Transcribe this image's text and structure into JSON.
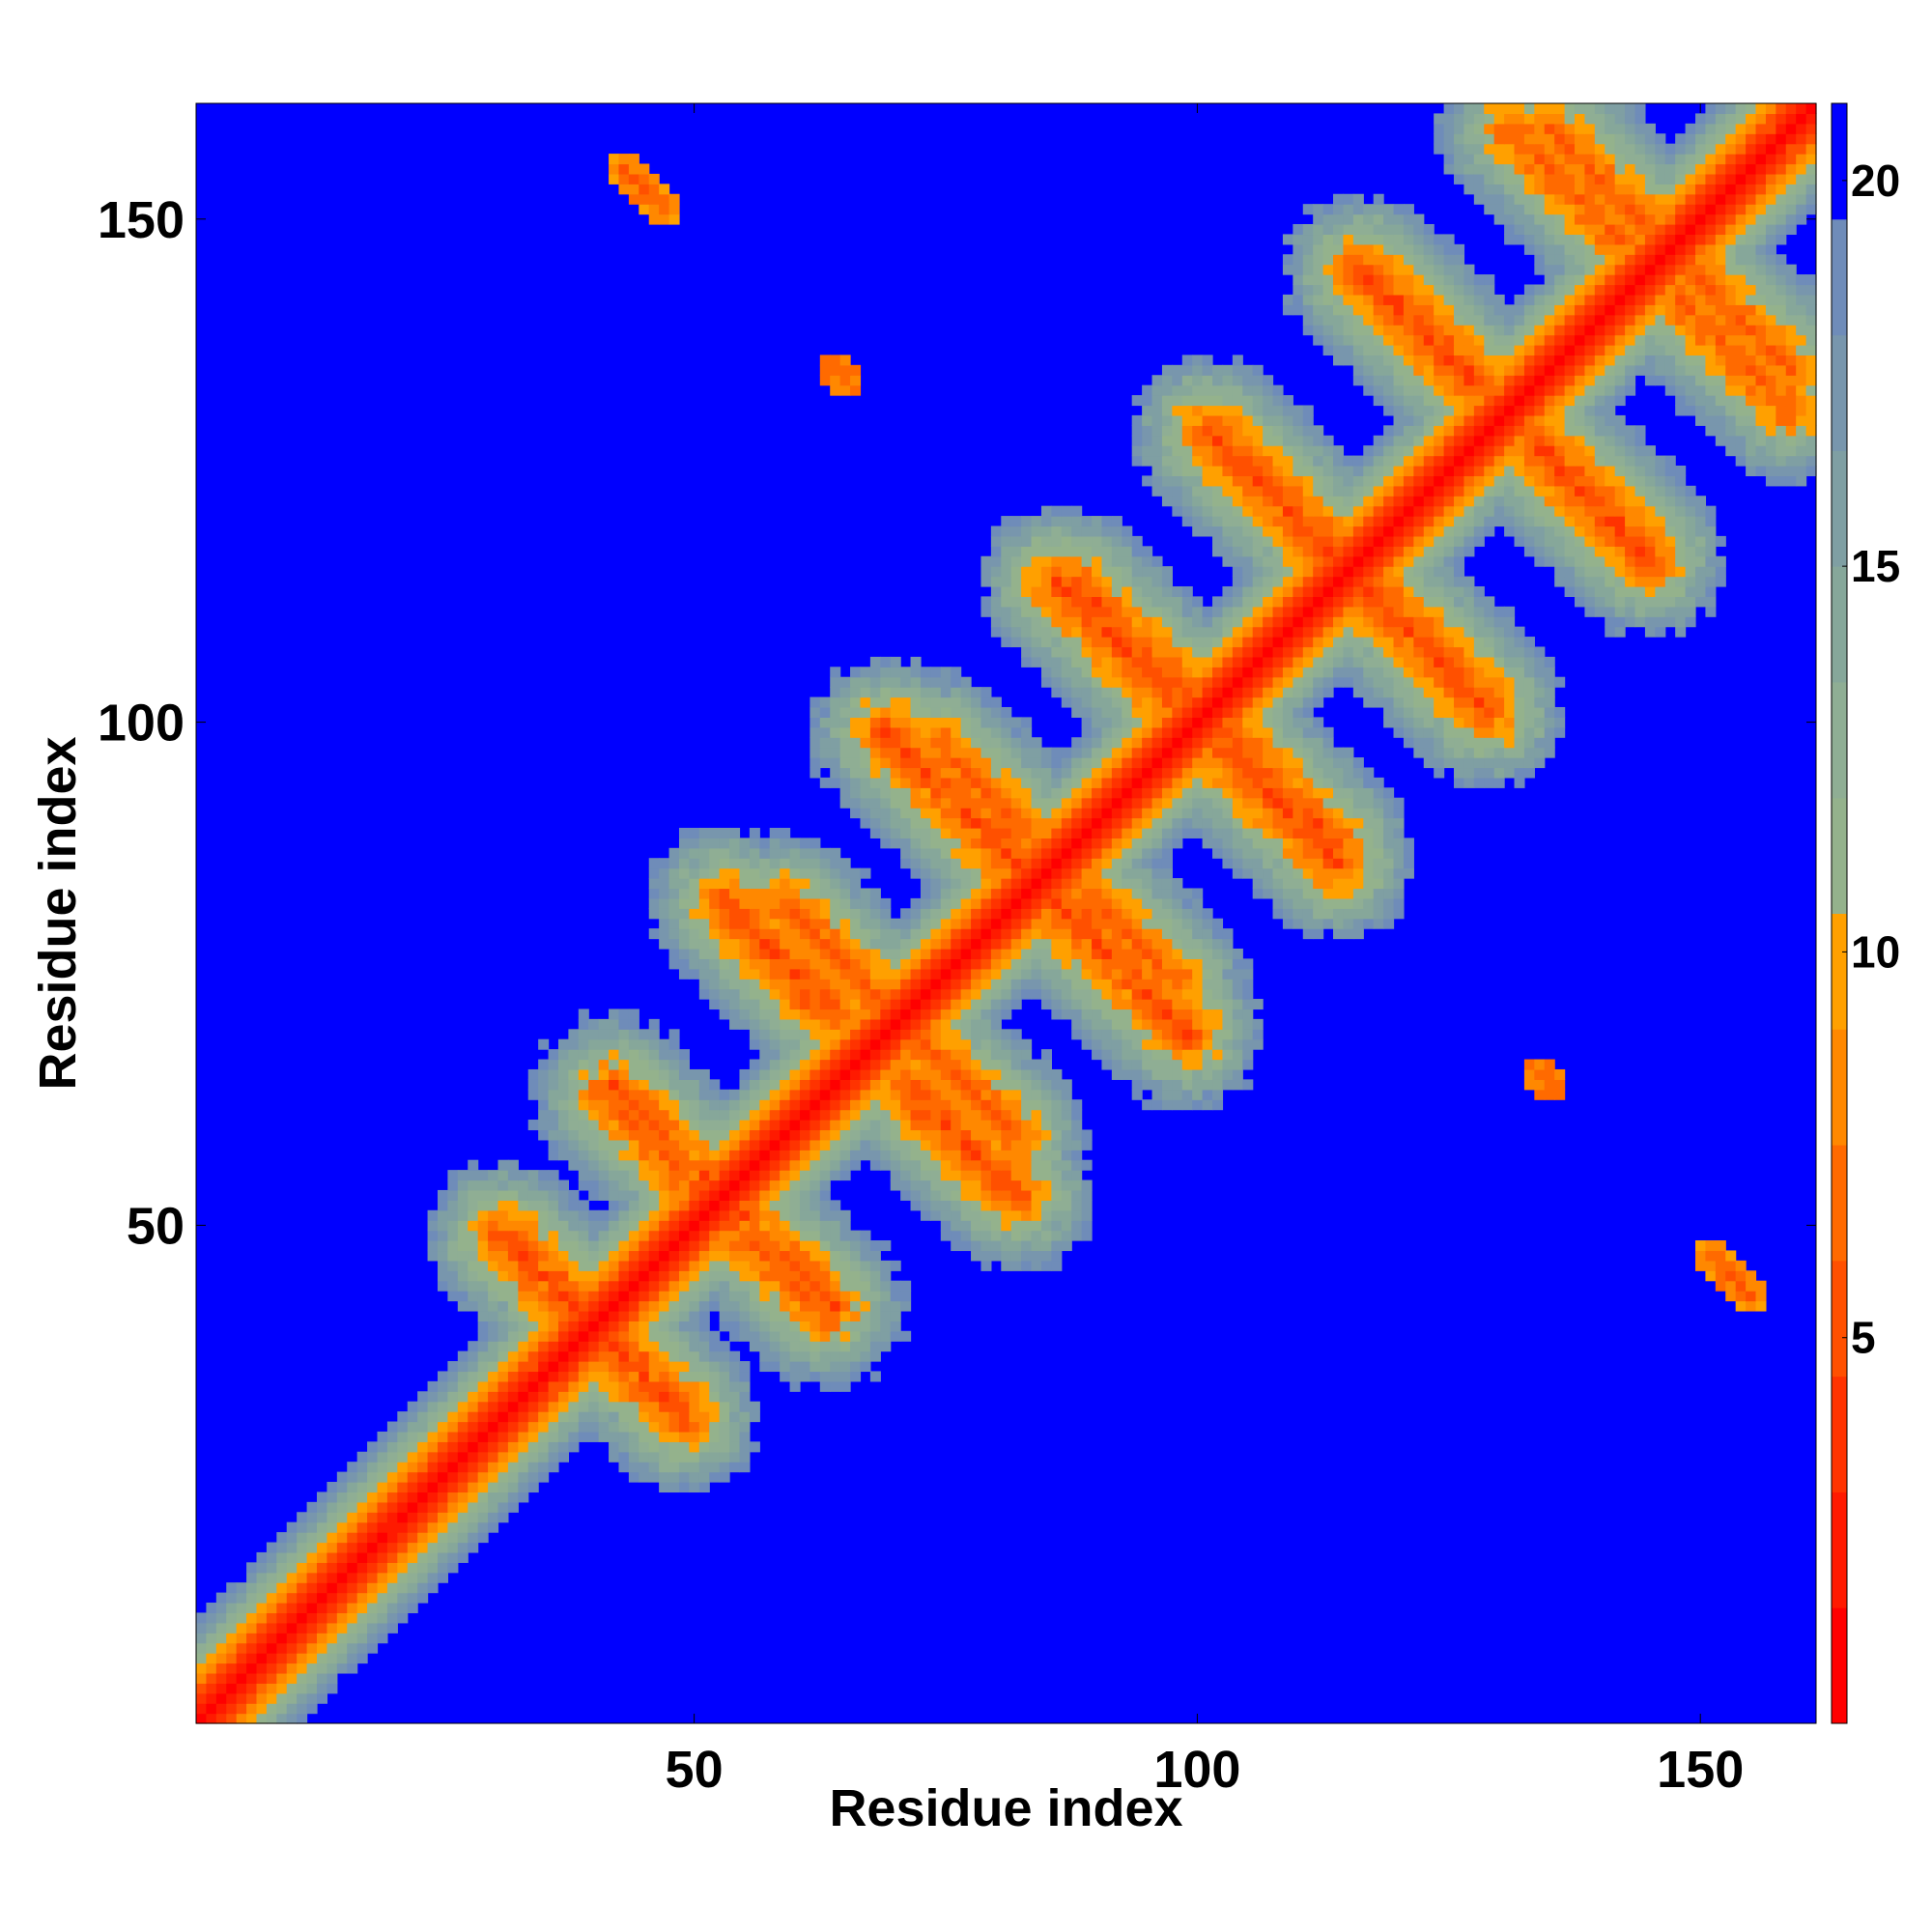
{
  "chart_data": {
    "type": "heatmap",
    "title": "",
    "xlabel": "Residue index",
    "ylabel": "Residue index",
    "n_residues": 161,
    "xlim": [
      1,
      161
    ],
    "ylim": [
      1,
      161
    ],
    "x_ticks": [
      50,
      100,
      150
    ],
    "y_ticks": [
      50,
      100,
      150
    ],
    "colorbar": {
      "ticks": [
        5,
        10,
        15,
        20
      ],
      "range": [
        0,
        21
      ],
      "colors": [
        "#ff0000",
        "#ff1a00",
        "#ff3300",
        "#ff5000",
        "#ff6a00",
        "#ff8800",
        "#ffa000",
        "#94b28c",
        "#8fae94",
        "#86a79a",
        "#7f9fa3",
        "#7896ad",
        "#6f8cb9",
        "#0000ff"
      ]
    },
    "background_color": "#0000ff",
    "contact_bands": [
      {
        "kind": "diagonal",
        "i_start": 1,
        "j_start": 1,
        "length": 161,
        "value": 2
      },
      {
        "kind": "antiparallel",
        "i_start": 31,
        "j_start": 49,
        "length": 12,
        "value": 5
      },
      {
        "kind": "antiparallel",
        "i_start": 41,
        "j_start": 63,
        "length": 10,
        "value": 6
      },
      {
        "kind": "antiparallel",
        "i_start": 53,
        "j_start": 82,
        "length": 12,
        "value": 5
      },
      {
        "kind": "antiparallel",
        "i_start": 69,
        "j_start": 99,
        "length": 14,
        "value": 5
      },
      {
        "kind": "antiparallel",
        "i_start": 86,
        "j_start": 114,
        "length": 12,
        "value": 5
      },
      {
        "kind": "antiparallel",
        "i_start": 101,
        "j_start": 129,
        "length": 14,
        "value": 5
      },
      {
        "kind": "antiparallel",
        "i_start": 116,
        "j_start": 145,
        "length": 12,
        "value": 5
      },
      {
        "kind": "antiparallel",
        "i_start": 131,
        "j_start": 159,
        "length": 12,
        "value": 6
      },
      {
        "kind": "antiparallel",
        "i_start": 52,
        "j_start": 54,
        "length": 13,
        "value": 6
      },
      {
        "kind": "antiparallel",
        "i_start": 69,
        "j_start": 72,
        "length": 14,
        "value": 6
      },
      {
        "kind": "antiparallel",
        "i_start": 85,
        "j_start": 87,
        "length": 14,
        "value": 6
      },
      {
        "kind": "antiparallel",
        "i_start": 100,
        "j_start": 102,
        "length": 15,
        "value": 6
      },
      {
        "kind": "antiparallel",
        "i_start": 114,
        "j_start": 117,
        "length": 15,
        "value": 6
      },
      {
        "kind": "antiparallel",
        "i_start": 130,
        "j_start": 132,
        "length": 15,
        "value": 6
      },
      {
        "kind": "antiparallel",
        "i_start": 146,
        "j_start": 148,
        "length": 14,
        "value": 6
      },
      {
        "kind": "isolated",
        "i_start": 43,
        "j_start": 155,
        "length": 5,
        "value": 6
      },
      {
        "kind": "isolated",
        "i_start": 64,
        "j_start": 135,
        "length": 2,
        "value": 6
      }
    ]
  }
}
